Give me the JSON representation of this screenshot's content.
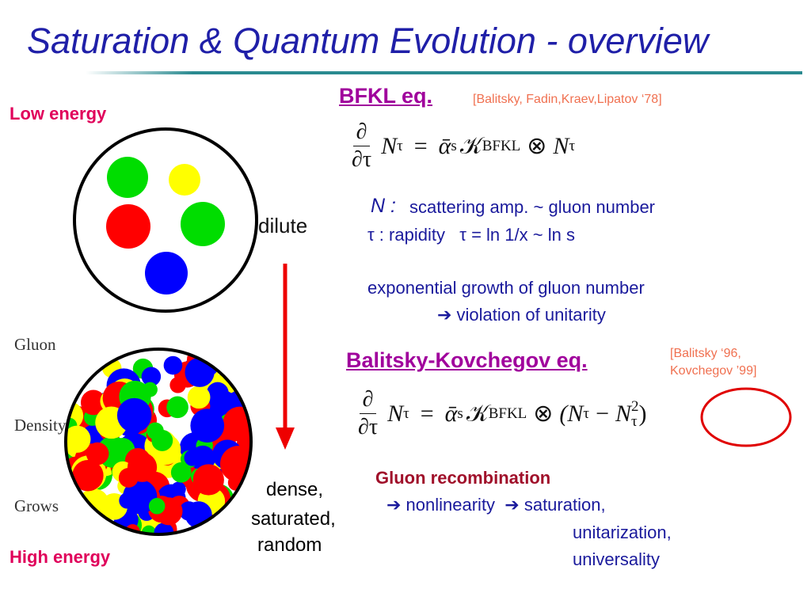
{
  "title": "Saturation & Quantum Evolution - overview",
  "left": {
    "low_energy": "Low energy",
    "high_energy": "High energy",
    "dilute": "dilute",
    "density": [
      "Gluon",
      "Density",
      "Grows"
    ],
    "dense": [
      "dense,",
      "saturated,",
      "random"
    ]
  },
  "bfkl": {
    "heading": "BFKL eq.",
    "citation": "[Balitsky, Fadin,Kraev,Lipatov ‘78]",
    "equation": {
      "num": "∂",
      "den": "∂τ",
      "parts": [
        "N",
        "τ",
        "=",
        "ᾱ",
        "s",
        "𝒦",
        "BFKL",
        "⊗",
        "N",
        "τ"
      ]
    },
    "notes": {
      "n_symbol": "N :",
      "n_text": "scattering amp. ~ gluon number",
      "tau_line": "τ : rapidity   τ = ln 1/x ~ ln s",
      "growth": "exponential growth of gluon number",
      "violation": "➔ violation of unitarity"
    }
  },
  "bk": {
    "heading": "Balitsky-Kovchegov eq.",
    "citation": [
      "[Balitsky ‘96,",
      "Kovchegov ’99]"
    ],
    "equation": {
      "num": "∂",
      "den": "∂τ",
      "parts": [
        "N",
        "τ",
        "=",
        "ᾱ",
        "s",
        "𝒦",
        "BFKL",
        "⊗",
        "(N",
        "τ",
        "−",
        "N",
        "2",
        "τ",
        ")"
      ]
    },
    "recombination": "Gluon recombination",
    "consequences": [
      "➔ nonlinearity  ➔ saturation,",
      "unitarization,",
      "universality"
    ]
  }
}
